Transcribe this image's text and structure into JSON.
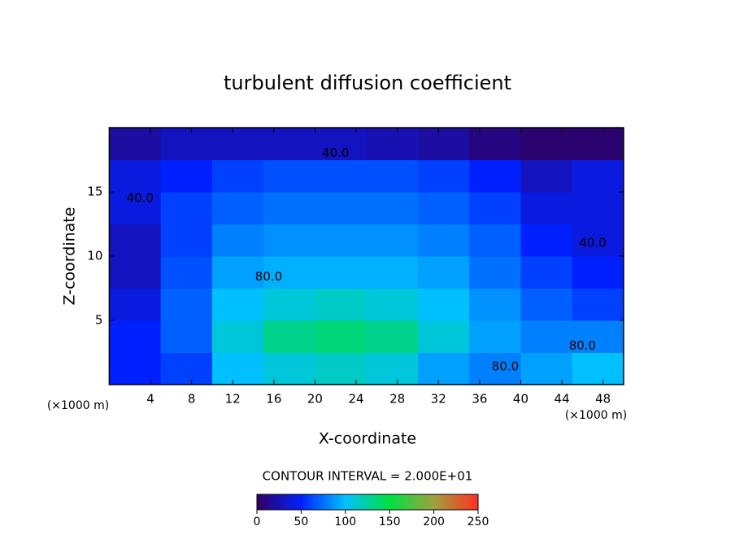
{
  "chart_data": {
    "type": "heatmap",
    "title": "turbulent diffusion coefficient",
    "xlabel": "X-coordinate",
    "ylabel": "Z-coordinate",
    "xunit": "(×1000 m)",
    "yunit": "(×1000 m)",
    "contour_note": "CONTOUR INTERVAL = 2.000E+01",
    "xlim": [
      0,
      50
    ],
    "ylim": [
      0,
      20
    ],
    "xticks": [
      4,
      8,
      12,
      16,
      20,
      24,
      28,
      32,
      36,
      40,
      44,
      48
    ],
    "yticks": [
      5,
      10,
      15
    ],
    "x": [
      2.5,
      7.5,
      12.5,
      17.5,
      22.5,
      27.5,
      32.5,
      37.5,
      42.5,
      47.5
    ],
    "y": [
      1.25,
      3.75,
      6.25,
      8.75,
      11.25,
      13.75,
      16.25,
      18.75
    ],
    "z": [
      [
        50,
        60,
        100,
        110,
        115,
        110,
        90,
        80,
        90,
        100
      ],
      [
        50,
        70,
        110,
        130,
        135,
        130,
        110,
        90,
        80,
        80
      ],
      [
        40,
        70,
        100,
        110,
        115,
        110,
        100,
        85,
        70,
        60
      ],
      [
        30,
        65,
        90,
        95,
        95,
        95,
        90,
        75,
        60,
        50
      ],
      [
        30,
        60,
        80,
        85,
        85,
        85,
        80,
        70,
        50,
        40
      ],
      [
        40,
        60,
        70,
        75,
        75,
        75,
        70,
        60,
        40,
        40
      ],
      [
        40,
        50,
        60,
        65,
        65,
        65,
        60,
        50,
        30,
        40
      ],
      [
        20,
        30,
        30,
        30,
        30,
        25,
        20,
        10,
        5,
        5
      ]
    ],
    "clim": [
      0,
      250
    ],
    "colormap": [
      "#300060",
      "#0020ff",
      "#00c0ff",
      "#00e040",
      "#a0a040",
      "#ff3020"
    ],
    "colorbar_ticks": [
      0,
      50,
      100,
      150,
      200,
      250
    ],
    "annotations": [
      {
        "text": "40.0",
        "x": 22,
        "y": 18
      },
      {
        "text": "80.0",
        "x": 15.5,
        "y": 8.4
      },
      {
        "text": "40.0",
        "x": 3,
        "y": 14.5
      },
      {
        "text": "80.0",
        "x": 38.5,
        "y": 1.4
      },
      {
        "text": "40.0",
        "x": 47,
        "y": 11
      },
      {
        "text": "80.0",
        "x": 46,
        "y": 3
      }
    ]
  }
}
